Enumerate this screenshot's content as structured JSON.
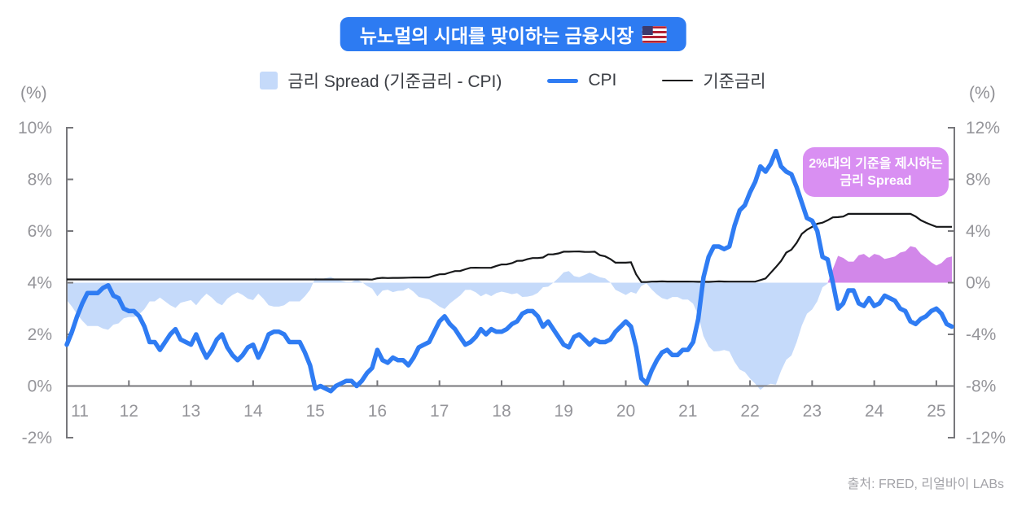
{
  "header": {
    "title": "뉴노멀의 시대를 맞이하는 금융시장",
    "flag_icon": "us-flag"
  },
  "legend": {
    "spread_label": "금리 Spread  (기준금리 - CPI)",
    "cpi_label": "CPI",
    "rate_label": "기준금리"
  },
  "axes": {
    "left_unit": "(%)",
    "right_unit": "(%)"
  },
  "annotation": {
    "line1": "2%대의 기준을 제시하는",
    "line2": "금리 Spread"
  },
  "footer": {
    "source": "출처: FRED, 리얼바이 LABs"
  },
  "theme": {
    "banner_bg": "#2d7bf2",
    "cpi_color": "#2f7cf3",
    "rate_color": "#17181a",
    "spread_color": "#c5dafa",
    "spread_highlight_color": "#d287e9",
    "callout_bg": "#d98ff2",
    "axis_color": "#77777b",
    "tick_text_color": "#95959a"
  },
  "chart_data": {
    "type": "area",
    "frequency": "monthly",
    "x_start": "2011-01",
    "x_end": "2025-04",
    "left_axis": {
      "unit": "(%)",
      "min": -2,
      "max": 10,
      "ticks": [
        "10%",
        "8%",
        "6%",
        "4%",
        "2%",
        "0%",
        "-2%"
      ]
    },
    "right_axis": {
      "unit": "(%)",
      "min": -12,
      "max": 12,
      "ticks": [
        "12%",
        "8%",
        "4%",
        "0%",
        "-4%",
        "-8%",
        "-12%"
      ]
    },
    "x_ticks": [
      "11",
      "12",
      "13",
      "14",
      "15",
      "16",
      "17",
      "18",
      "19",
      "20",
      "21",
      "22",
      "23",
      "24",
      "25"
    ],
    "baseline_left_value": 0,
    "spread_zero_right_value": 0,
    "series": [
      {
        "id": "spread",
        "name": "금리 Spread (기준금리 - CPI)",
        "type": "area",
        "axis": "right",
        "derived": "기준금리 - CPI",
        "color": "#c5dafa",
        "highlight_color": "#d287e9",
        "highlight_from": "2023-04",
        "highlight_from_index": 147
      },
      {
        "id": "cpi",
        "name": "CPI",
        "type": "line",
        "axis": "left",
        "color": "#2f7cf3",
        "values": [
          1.6,
          2.1,
          2.7,
          3.2,
          3.6,
          3.6,
          3.6,
          3.8,
          3.9,
          3.5,
          3.4,
          3.0,
          2.9,
          2.9,
          2.7,
          2.3,
          1.7,
          1.7,
          1.4,
          1.7,
          2.0,
          2.2,
          1.8,
          1.7,
          1.6,
          2.0,
          1.5,
          1.1,
          1.4,
          1.8,
          2.0,
          1.5,
          1.2,
          1.0,
          1.2,
          1.5,
          1.6,
          1.1,
          1.5,
          2.0,
          2.1,
          2.1,
          2.0,
          1.7,
          1.7,
          1.7,
          1.3,
          0.8,
          -0.1,
          0.0,
          -0.1,
          -0.2,
          0.0,
          0.1,
          0.2,
          0.2,
          0.0,
          0.2,
          0.5,
          0.7,
          1.4,
          1.0,
          0.9,
          1.1,
          1.0,
          1.0,
          0.8,
          1.1,
          1.5,
          1.6,
          1.7,
          2.1,
          2.5,
          2.7,
          2.4,
          2.2,
          1.9,
          1.6,
          1.7,
          1.9,
          2.2,
          2.0,
          2.2,
          2.1,
          2.1,
          2.2,
          2.4,
          2.5,
          2.8,
          2.9,
          2.9,
          2.7,
          2.3,
          2.5,
          2.2,
          1.9,
          1.6,
          1.5,
          1.9,
          2.0,
          1.8,
          1.6,
          1.8,
          1.7,
          1.7,
          1.8,
          2.1,
          2.3,
          2.5,
          2.3,
          1.5,
          0.3,
          0.1,
          0.6,
          1.0,
          1.3,
          1.4,
          1.2,
          1.2,
          1.4,
          1.4,
          1.7,
          2.6,
          4.2,
          5.0,
          5.4,
          5.4,
          5.3,
          5.4,
          6.2,
          6.8,
          7.0,
          7.5,
          7.9,
          8.5,
          8.3,
          8.6,
          9.1,
          8.5,
          8.3,
          8.2,
          7.7,
          7.1,
          6.5,
          6.4,
          6.0,
          5.0,
          4.9,
          4.0,
          3.0,
          3.2,
          3.7,
          3.7,
          3.2,
          3.1,
          3.4,
          3.1,
          3.2,
          3.5,
          3.4,
          3.3,
          3.0,
          2.9,
          2.5,
          2.4,
          2.6,
          2.7,
          2.9,
          3.0,
          2.8,
          2.4,
          2.3
        ]
      },
      {
        "id": "rate",
        "name": "기준금리",
        "type": "line",
        "axis": "right",
        "color": "#17181a",
        "values": [
          0.25,
          0.25,
          0.25,
          0.25,
          0.25,
          0.25,
          0.25,
          0.25,
          0.25,
          0.25,
          0.25,
          0.25,
          0.25,
          0.25,
          0.25,
          0.25,
          0.25,
          0.25,
          0.25,
          0.25,
          0.25,
          0.25,
          0.25,
          0.25,
          0.25,
          0.25,
          0.25,
          0.25,
          0.25,
          0.25,
          0.25,
          0.25,
          0.25,
          0.25,
          0.25,
          0.25,
          0.25,
          0.25,
          0.25,
          0.25,
          0.25,
          0.25,
          0.25,
          0.25,
          0.25,
          0.25,
          0.25,
          0.25,
          0.25,
          0.25,
          0.25,
          0.25,
          0.25,
          0.25,
          0.25,
          0.25,
          0.25,
          0.25,
          0.25,
          0.24,
          0.34,
          0.38,
          0.36,
          0.37,
          0.37,
          0.38,
          0.39,
          0.4,
          0.4,
          0.4,
          0.41,
          0.54,
          0.65,
          0.66,
          0.79,
          0.9,
          0.91,
          1.04,
          1.15,
          1.16,
          1.15,
          1.15,
          1.16,
          1.3,
          1.41,
          1.42,
          1.51,
          1.69,
          1.7,
          1.82,
          1.91,
          1.91,
          1.95,
          2.19,
          2.2,
          2.27,
          2.4,
          2.4,
          2.41,
          2.42,
          2.39,
          2.38,
          2.4,
          2.13,
          2.04,
          1.83,
          1.55,
          1.55,
          1.55,
          1.58,
          0.65,
          0.05,
          0.05,
          0.08,
          0.09,
          0.1,
          0.09,
          0.09,
          0.09,
          0.09,
          0.09,
          0.08,
          0.07,
          0.07,
          0.06,
          0.08,
          0.1,
          0.09,
          0.08,
          0.08,
          0.08,
          0.08,
          0.08,
          0.08,
          0.2,
          0.33,
          0.77,
          1.21,
          1.68,
          2.33,
          2.56,
          3.08,
          3.78,
          4.1,
          4.33,
          4.57,
          4.65,
          4.83,
          5.06,
          5.08,
          5.12,
          5.33,
          5.33,
          5.33,
          5.33,
          5.33,
          5.33,
          5.33,
          5.33,
          5.33,
          5.33,
          5.33,
          5.33,
          5.33,
          5.13,
          4.83,
          4.64,
          4.48,
          4.33,
          4.33,
          4.33,
          4.33
        ]
      }
    ]
  }
}
